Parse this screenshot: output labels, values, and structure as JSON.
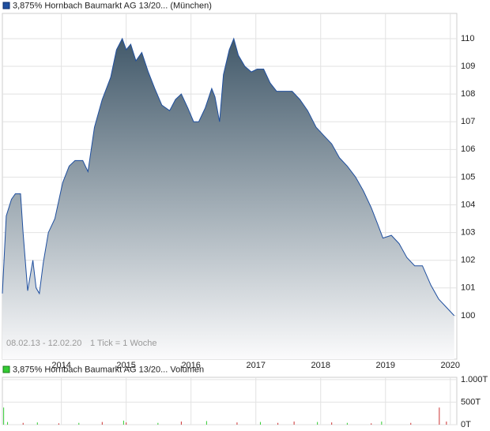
{
  "chart_data": [
    {
      "type": "area",
      "legend": "3,875% Hornbach Baumarkt AG 13/20... (München)",
      "color": "#1f4f9f",
      "annotations": [
        "08.02.13 - 12.02.20",
        "1 Tick = 1 Woche"
      ],
      "x": [
        2013.09,
        2013.15,
        2013.23,
        2013.29,
        2013.37,
        2013.41,
        2013.48,
        2013.56,
        2013.61,
        2013.66,
        2013.72,
        2013.8,
        2013.9,
        2014.02,
        2014.12,
        2014.21,
        2014.33,
        2014.41,
        2014.51,
        2014.63,
        2014.76,
        2014.85,
        2014.94,
        2015.0,
        2015.07,
        2015.15,
        2015.24,
        2015.34,
        2015.44,
        2015.55,
        2015.67,
        2015.76,
        2015.85,
        2015.95,
        2016.04,
        2016.12,
        2016.22,
        2016.32,
        2016.37,
        2016.44,
        2016.5,
        2016.59,
        2016.66,
        2016.73,
        2016.83,
        2016.93,
        2017.02,
        2017.12,
        2017.22,
        2017.32,
        2017.44,
        2017.56,
        2017.68,
        2017.8,
        2017.93,
        2018.05,
        2018.17,
        2018.29,
        2018.41,
        2018.54,
        2018.66,
        2018.78,
        2018.88,
        2018.96,
        2019.09,
        2019.21,
        2019.33,
        2019.45,
        2019.57,
        2019.7,
        2019.82,
        2019.94,
        2020.06
      ],
      "values": [
        100.8,
        103.6,
        104.2,
        104.4,
        104.4,
        103.0,
        100.9,
        102.0,
        101.0,
        100.8,
        101.9,
        103.0,
        103.5,
        104.8,
        105.4,
        105.6,
        105.6,
        105.2,
        106.8,
        107.8,
        108.6,
        109.6,
        110.0,
        109.6,
        109.8,
        109.2,
        109.5,
        108.8,
        108.2,
        107.6,
        107.4,
        107.8,
        108.0,
        107.5,
        107.0,
        107.0,
        107.5,
        108.2,
        107.9,
        107.0,
        108.7,
        109.6,
        110.0,
        109.4,
        109.0,
        108.8,
        108.9,
        108.9,
        108.4,
        108.1,
        108.1,
        108.1,
        107.8,
        107.4,
        106.8,
        106.5,
        106.2,
        105.7,
        105.4,
        105.0,
        104.5,
        103.9,
        103.3,
        102.8,
        102.9,
        102.6,
        102.1,
        101.8,
        101.8,
        101.1,
        100.6,
        100.3,
        100.0
      ],
      "xlim": [
        2013.09,
        2020.1
      ],
      "xticks": [
        2014,
        2015,
        2016,
        2017,
        2018,
        2019,
        2020
      ],
      "ylim": [
        98.43,
        110.91
      ],
      "yticks": [
        100,
        101,
        102,
        103,
        104,
        105,
        106,
        107,
        108,
        109,
        110
      ],
      "grid": true
    },
    {
      "type": "bar",
      "legend": "3,875% Hornbach Baumarkt AG 13/20... Volumen",
      "color": "#33cc33",
      "x": [
        2013.11,
        2013.17,
        2013.41,
        2013.63,
        2013.96,
        2014.27,
        2014.63,
        2014.96,
        2015.0,
        2015.49,
        2015.85,
        2016.24,
        2016.71,
        2017.07,
        2017.34,
        2017.59,
        2017.95,
        2018.17,
        2018.41,
        2018.78,
        2018.94,
        2019.39,
        2019.83,
        2019.94
      ],
      "values": [
        380,
        60,
        40,
        50,
        30,
        40,
        60,
        90,
        50,
        40,
        70,
        80,
        50,
        60,
        40,
        70,
        60,
        50,
        40,
        30,
        70,
        40,
        380,
        70
      ],
      "colors": [
        "#33cc33",
        "#33cc33",
        "#cc3333",
        "#33cc33",
        "#cc3333",
        "#33cc33",
        "#cc3333",
        "#33cc33",
        "#cc3333",
        "#33cc33",
        "#cc3333",
        "#33cc33",
        "#cc3333",
        "#33cc33",
        "#cc3333",
        "#cc3333",
        "#33cc33",
        "#cc3333",
        "#33cc33",
        "#cc3333",
        "#33cc33",
        "#cc3333",
        "#cc3333",
        "#cc3333"
      ],
      "xlim": [
        2013.09,
        2020.1
      ],
      "xticks": [
        2014,
        2015,
        2016,
        2017,
        2018,
        2019,
        2020
      ],
      "ylim": [
        0,
        1050
      ],
      "yticks": [
        {
          "value": 0,
          "label": "0T"
        },
        {
          "value": 500,
          "label": "500T"
        },
        {
          "value": 1000,
          "label": "1.000T"
        }
      ],
      "grid": true
    }
  ]
}
